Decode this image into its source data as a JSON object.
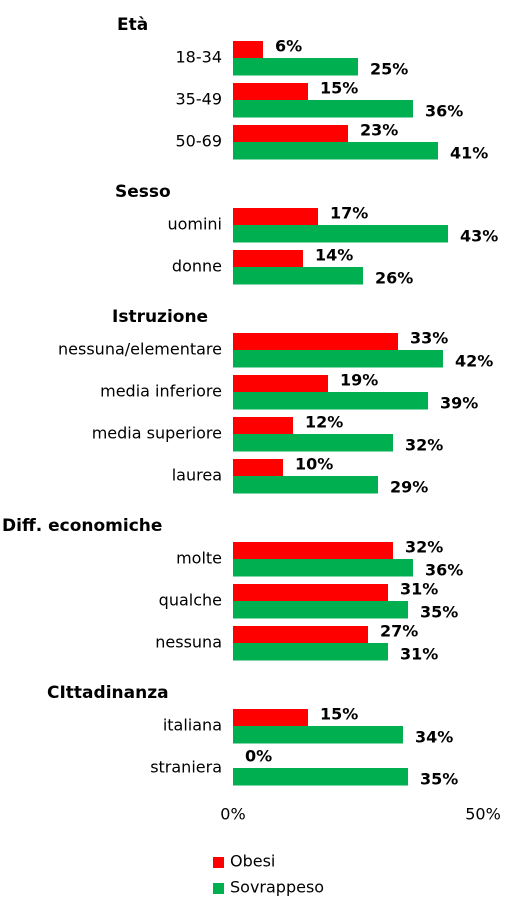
{
  "chart_data": {
    "type": "bar",
    "orientation": "horizontal",
    "groups": [
      {
        "name": "Età",
        "categories": [
          "18-34",
          "35-49",
          "50-69"
        ]
      },
      {
        "name": "Sesso",
        "categories": [
          "uomini",
          "donne"
        ]
      },
      {
        "name": "Istruzione",
        "categories": [
          "nessuna/elementare",
          "media inferiore",
          "media superiore",
          "laurea"
        ]
      },
      {
        "name": "Diff. economiche",
        "categories": [
          "molte",
          "qualche",
          "nessuna"
        ]
      },
      {
        "name": "CIttadinanza",
        "categories": [
          "italiana",
          "straniera"
        ]
      }
    ],
    "series": [
      {
        "name": "Obesi",
        "color": "#ff0000",
        "values": [
          6,
          15,
          23,
          17,
          14,
          33,
          19,
          12,
          10,
          32,
          31,
          27,
          15,
          0
        ],
        "value_labels": [
          "6%",
          "15%",
          "23%",
          "17%",
          "14%",
          "33%",
          "19%",
          "12%",
          "10%",
          "32%",
          "31%",
          "27%",
          "15%",
          "0%"
        ]
      },
      {
        "name": "Sovrappeso",
        "color": "#00b050",
        "values": [
          25,
          36,
          41,
          43,
          26,
          42,
          39,
          32,
          29,
          36,
          35,
          31,
          34,
          35
        ],
        "value_labels": [
          "25%",
          "36%",
          "41%",
          "43%",
          "26%",
          "42%",
          "39%",
          "32%",
          "29%",
          "36%",
          "35%",
          "31%",
          "34%",
          "35%"
        ]
      }
    ],
    "xlim": [
      0,
      50
    ],
    "xticks": [
      {
        "value": 0,
        "label": "0%"
      },
      {
        "value": 50,
        "label": "50%"
      }
    ],
    "legend": "bottom"
  }
}
